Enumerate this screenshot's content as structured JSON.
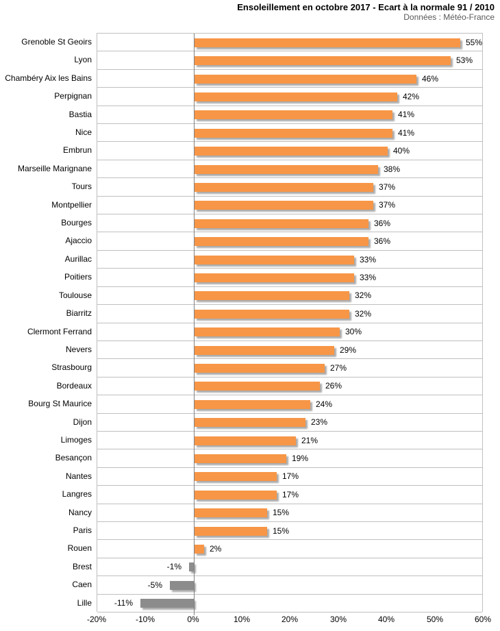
{
  "header": {
    "title": "Ensoleillement en octobre 2017 - Ecart à la normale 91 / 2010",
    "subtitle": "Données : Météo-France"
  },
  "chart_data": {
    "type": "bar",
    "orientation": "horizontal",
    "title": "Ensoleillement en octobre 2017 - Ecart à la normale 91 / 2010",
    "subtitle": "Données : Météo-France",
    "categories": [
      "Grenoble St Geoirs",
      "Lyon",
      "Chambéry Aix les Bains",
      "Perpignan",
      "Bastia",
      "Nice",
      "Embrun",
      "Marseille Marignane",
      "Tours",
      "Montpellier",
      "Bourges",
      "Ajaccio",
      "Aurillac",
      "Poitiers",
      "Toulouse",
      "Biarritz",
      "Clermont Ferrand",
      "Nevers",
      "Strasbourg",
      "Bordeaux",
      "Bourg St Maurice",
      "Dijon",
      "Limoges",
      "Besançon",
      "Nantes",
      "Langres",
      "Nancy",
      "Paris",
      "Rouen",
      "Brest",
      "Caen",
      "Lille"
    ],
    "values": [
      55,
      53,
      46,
      42,
      41,
      41,
      40,
      38,
      37,
      37,
      36,
      36,
      33,
      33,
      32,
      32,
      30,
      29,
      27,
      26,
      24,
      23,
      21,
      19,
      17,
      17,
      15,
      15,
      2,
      -1,
      -5,
      -11
    ],
    "value_labels": [
      "55%",
      "53%",
      "46%",
      "42%",
      "41%",
      "41%",
      "40%",
      "38%",
      "37%",
      "37%",
      "36%",
      "36%",
      "33%",
      "33%",
      "32%",
      "32%",
      "30%",
      "29%",
      "27%",
      "26%",
      "24%",
      "23%",
      "21%",
      "19%",
      "17%",
      "17%",
      "15%",
      "15%",
      "2%",
      "-1%",
      "-5%",
      "-11%"
    ],
    "xlabel": "",
    "ylabel": "",
    "xlim": [
      -20,
      60
    ],
    "x_tick_values": [
      -20,
      -10,
      0,
      10,
      20,
      30,
      40,
      50,
      60
    ],
    "x_tick_labels": [
      "-20%",
      "-10%",
      "0%",
      "10%",
      "20%",
      "30%",
      "40%",
      "50%",
      "60%"
    ],
    "grid": "horizontal category separators",
    "legend": "none",
    "colors": {
      "positive_bar": "#F79646",
      "negative_bar": "#8C8C8C",
      "gridline": "#BFBFBF",
      "zero_line": "#808080",
      "bar_shadow": "#ABABAB"
    }
  }
}
